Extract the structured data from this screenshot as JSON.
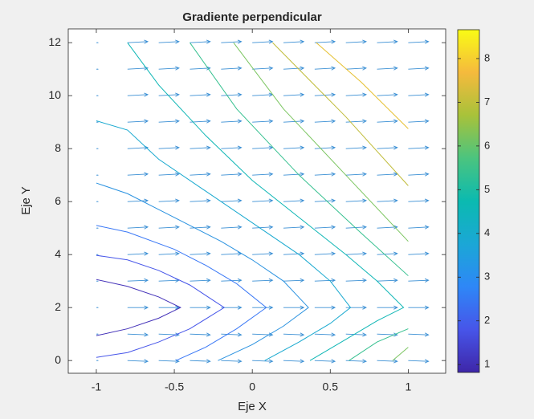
{
  "chart_data": {
    "type": "contour",
    "title": "Gradiente perpendicular",
    "xlabel": "Eje X",
    "ylabel": "Eje Y",
    "xlim": [
      -1.18,
      1.24
    ],
    "ylim": [
      -0.48,
      12.52
    ],
    "xticks": [
      -1,
      -0.5,
      0,
      0.5,
      1
    ],
    "yticks": [
      0,
      2,
      4,
      6,
      8,
      10,
      12
    ],
    "contours": [
      {
        "level": 1.3,
        "color": "#4230b8",
        "x": [
          -1,
          -0.8,
          -0.6,
          -0.46,
          -0.6,
          -0.8,
          -1
        ],
        "y": [
          0.94,
          1.2,
          1.6,
          2,
          2.4,
          2.8,
          3.06
        ]
      },
      {
        "level": 2.0,
        "color": "#4655e9",
        "x": [
          -1,
          -0.8,
          -0.6,
          -0.4,
          -0.18,
          -0.4,
          -0.6,
          -0.8,
          -1
        ],
        "y": [
          0.12,
          0.3,
          0.7,
          1.2,
          2,
          2.85,
          3.4,
          3.8,
          3.97
        ]
      },
      {
        "level": 2.7,
        "color": "#3a78f6",
        "x": [
          -0.49,
          -0.3,
          -0.1,
          0.09,
          -0.1,
          -0.3,
          -0.5,
          -0.8,
          -1
        ],
        "y": [
          0,
          0.5,
          1.2,
          2,
          2.9,
          3.6,
          4.2,
          4.85,
          5.1
        ]
      },
      {
        "level": 3.4,
        "color": "#2a92e0",
        "x": [
          -0.22,
          0,
          0.2,
          0.36,
          0.2,
          0,
          -0.2,
          -0.5,
          -0.8,
          -1
        ],
        "y": [
          0,
          0.6,
          1.3,
          2,
          3,
          3.8,
          4.5,
          5.4,
          6.3,
          6.7
        ]
      },
      {
        "level": 4.1,
        "color": "#17a8cf",
        "x": [
          0.08,
          0.3,
          0.5,
          0.63,
          0.5,
          0.3,
          0,
          -0.3,
          -0.6,
          -0.8,
          -1
        ],
        "y": [
          0,
          0.7,
          1.4,
          2,
          3,
          4,
          5.2,
          6.4,
          7.6,
          8.7,
          9.05
        ]
      },
      {
        "level": 4.8,
        "color": "#0eb6b5",
        "x": [
          0.37,
          0.6,
          0.8,
          0.97,
          0.8,
          0.6,
          0.3,
          0,
          -0.3,
          -0.6,
          -0.8
        ],
        "y": [
          0,
          0.8,
          1.5,
          2,
          3,
          4,
          5.4,
          6.8,
          8.5,
          10.4,
          12
        ]
      },
      {
        "level": 5.5,
        "color": "#35c08f",
        "x": [
          0.62,
          0.8,
          1,
          null,
          1,
          0.7,
          0.3,
          -0.1,
          -0.4
        ],
        "y": [
          0,
          0.7,
          1.2,
          null,
          3.2,
          4.8,
          7,
          9.5,
          12
        ]
      },
      {
        "level": 6.2,
        "color": "#7bc560",
        "x": [
          0.9,
          1,
          null,
          1,
          0.6,
          0.2,
          -0.12
        ],
        "y": [
          0,
          0.5,
          null,
          4.5,
          7,
          9.5,
          12
        ]
      },
      {
        "level": 6.9,
        "color": "#c0bc3a",
        "x": [
          1,
          0.6,
          0.13
        ],
        "y": [
          6.6,
          9.2,
          12
        ]
      },
      {
        "level": 7.6,
        "color": "#e6c030",
        "x": [
          1,
          0.7,
          0.41
        ],
        "y": [
          8.75,
          10.5,
          12
        ]
      }
    ],
    "quiver": {
      "color": "#3a8fd4",
      "x": [
        -1,
        -0.8,
        -0.6,
        -0.4,
        -0.2,
        0,
        0.2,
        0.4,
        0.6,
        0.8,
        1
      ],
      "y": [
        0,
        1,
        2,
        3,
        4,
        5,
        6,
        7,
        8,
        9,
        10,
        11,
        12
      ],
      "u": [
        [
          0.01,
          0.13,
          0.13,
          0.13,
          0.13,
          0.13,
          0.13,
          0.13,
          0.13,
          0.13,
          0.13
        ],
        [
          0.01,
          0.13,
          0.13,
          0.13,
          0.13,
          0.13,
          0.13,
          0.13,
          0.13,
          0.13,
          0.13
        ],
        [
          0.01,
          0.13,
          0.13,
          0.13,
          0.13,
          0.13,
          0.13,
          0.13,
          0.13,
          0.13,
          0.13
        ],
        [
          0.01,
          0.13,
          0.13,
          0.13,
          0.13,
          0.13,
          0.13,
          0.13,
          0.13,
          0.13,
          0.13
        ],
        [
          0.01,
          0.13,
          0.13,
          0.13,
          0.13,
          0.13,
          0.13,
          0.13,
          0.13,
          0.13,
          0.13
        ],
        [
          0.01,
          0.13,
          0.13,
          0.13,
          0.13,
          0.13,
          0.13,
          0.13,
          0.13,
          0.13,
          0.13
        ],
        [
          0.01,
          0.13,
          0.13,
          0.13,
          0.13,
          0.13,
          0.13,
          0.13,
          0.13,
          0.13,
          0.13
        ],
        [
          0.01,
          0.13,
          0.13,
          0.13,
          0.13,
          0.13,
          0.13,
          0.13,
          0.13,
          0.13,
          0.13
        ],
        [
          0.01,
          0.13,
          0.13,
          0.13,
          0.13,
          0.13,
          0.13,
          0.13,
          0.13,
          0.13,
          0.13
        ],
        [
          0.01,
          0.13,
          0.13,
          0.13,
          0.13,
          0.13,
          0.13,
          0.13,
          0.13,
          0.13,
          0.13
        ],
        [
          0.01,
          0.13,
          0.13,
          0.13,
          0.13,
          0.13,
          0.13,
          0.13,
          0.13,
          0.13,
          0.13
        ],
        [
          0.01,
          0.13,
          0.13,
          0.13,
          0.13,
          0.13,
          0.13,
          0.13,
          0.13,
          0.13,
          0.13
        ],
        [
          0.01,
          0.13,
          0.13,
          0.13,
          0.13,
          0.13,
          0.13,
          0.13,
          0.13,
          0.13,
          0.13
        ]
      ],
      "v": [
        [
          0,
          -0.03,
          -0.03,
          -0.03,
          -0.03,
          -0.03,
          -0.03,
          -0.03,
          -0.03,
          -0.03,
          -0.03
        ],
        [
          0,
          -0.03,
          -0.03,
          -0.03,
          -0.03,
          -0.03,
          -0.03,
          -0.03,
          -0.03,
          -0.03,
          -0.03
        ],
        [
          0,
          0,
          0,
          0,
          0,
          0,
          0,
          0,
          0,
          0,
          0
        ],
        [
          0,
          0.03,
          0.03,
          0.03,
          0.03,
          0.03,
          0.03,
          0.03,
          0.03,
          0.03,
          0.03
        ],
        [
          0,
          0.04,
          0.04,
          0.04,
          0.04,
          0.04,
          0.04,
          0.04,
          0.04,
          0.04,
          0.04
        ],
        [
          0,
          0.04,
          0.04,
          0.04,
          0.04,
          0.04,
          0.04,
          0.04,
          0.04,
          0.04,
          0.04
        ],
        [
          0,
          0.04,
          0.04,
          0.04,
          0.04,
          0.04,
          0.04,
          0.04,
          0.04,
          0.04,
          0.04
        ],
        [
          0,
          0.04,
          0.04,
          0.04,
          0.04,
          0.04,
          0.04,
          0.04,
          0.04,
          0.04,
          0.04
        ],
        [
          0,
          0.04,
          0.04,
          0.04,
          0.04,
          0.04,
          0.04,
          0.04,
          0.04,
          0.04,
          0.04
        ],
        [
          0,
          0.04,
          0.04,
          0.04,
          0.04,
          0.04,
          0.04,
          0.04,
          0.04,
          0.04,
          0.04
        ],
        [
          0,
          0.04,
          0.04,
          0.04,
          0.04,
          0.04,
          0.04,
          0.04,
          0.04,
          0.04,
          0.04
        ],
        [
          0,
          0.04,
          0.04,
          0.04,
          0.04,
          0.04,
          0.04,
          0.04,
          0.04,
          0.04,
          0.04
        ],
        [
          0,
          0.04,
          0.04,
          0.04,
          0.04,
          0.04,
          0.04,
          0.04,
          0.04,
          0.04,
          0.04
        ]
      ]
    },
    "colorbar": {
      "clim": [
        0.82,
        8.66
      ],
      "ticks": [
        1,
        2,
        3,
        4,
        5,
        6,
        7,
        8
      ],
      "colormap": [
        "#3e26a8",
        "#4755e9",
        "#2e87f7",
        "#1ba7d6",
        "#0bbab0",
        "#4bc47f",
        "#a8c23a",
        "#f5ba3d",
        "#f9fb15"
      ]
    }
  }
}
